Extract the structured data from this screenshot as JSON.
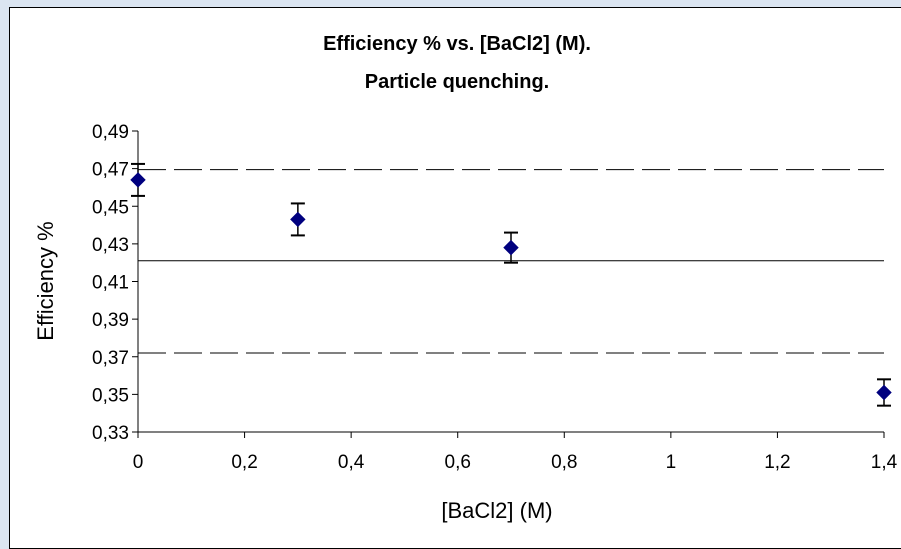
{
  "chart_data": {
    "type": "scatter",
    "title_line1": "Efficiency % vs. [BaCl2] (M).",
    "title_line2": "Particle quenching.",
    "xlabel": "[BaCl2] (M)",
    "ylabel": "Efficiency %",
    "xlim": [
      0,
      1.4
    ],
    "ylim": [
      0.33,
      0.49
    ],
    "x_ticks": [
      "0",
      "0,2",
      "0,4",
      "0,6",
      "0,8",
      "1",
      "1,2",
      "1,4"
    ],
    "y_ticks": [
      "0,33",
      "0,35",
      "0,37",
      "0,39",
      "0,41",
      "0,43",
      "0,45",
      "0,47",
      "0,49"
    ],
    "points": [
      {
        "x": 0,
        "y": 0.464,
        "err": 0.0085
      },
      {
        "x": 0.3,
        "y": 0.443,
        "err": 0.0085
      },
      {
        "x": 0.7,
        "y": 0.428,
        "err": 0.008
      },
      {
        "x": 1.4,
        "y": 0.351,
        "err": 0.007
      }
    ],
    "reference_lines": [
      {
        "y": 0.4695,
        "style": "dashed"
      },
      {
        "y": 0.421,
        "style": "solid"
      },
      {
        "y": 0.372,
        "style": "dashed"
      }
    ],
    "marker_color": "#00007f",
    "grid": false,
    "legend": "none"
  }
}
